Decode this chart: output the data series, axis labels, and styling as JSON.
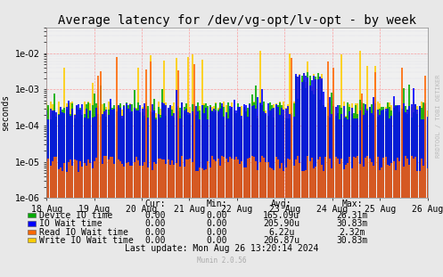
{
  "title": "Average latency for /dev/vg-opt/lv-opt - by week",
  "ylabel": "seconds",
  "background_color": "#e8e8e8",
  "plot_bg_color": "#f0f0f0",
  "x_labels": [
    "18 Aug",
    "19 Aug",
    "20 Aug",
    "21 Aug",
    "22 Aug",
    "23 Aug",
    "24 Aug",
    "25 Aug",
    "26 Aug"
  ],
  "ylim_min": 1e-06,
  "ylim_max": 0.05,
  "legend_entries": [
    {
      "label": "Device IO time",
      "color": "#00aa00"
    },
    {
      "label": "IO Wait time",
      "color": "#0000ff"
    },
    {
      "label": "Read IO Wait time",
      "color": "#ff6600"
    },
    {
      "label": "Write IO Wait time",
      "color": "#ffcc00"
    }
  ],
  "legend_table_rows": [
    [
      "Device IO time",
      "0.00",
      "0.00",
      "165.09u",
      "26.31m"
    ],
    [
      "IO Wait time",
      "0.00",
      "0.00",
      "205.90u",
      "30.83m"
    ],
    [
      "Read IO Wait time",
      "0.00",
      "0.00",
      "6.22u",
      "2.32m"
    ],
    [
      "Write IO Wait time",
      "0.00",
      "0.00",
      "206.87u",
      "30.83m"
    ]
  ],
  "footer": "Last update: Mon Aug 26 13:20:14 2024",
  "munin_version": "Munin 2.0.56",
  "watermark": "RRDTOOL / TOBI OETIKER",
  "n_days": 8,
  "n_per_day": 24,
  "base_value": 0.0003,
  "spike_max": 0.012,
  "title_fontsize": 10,
  "axis_fontsize": 7,
  "legend_fontsize": 7,
  "dpi": 100
}
